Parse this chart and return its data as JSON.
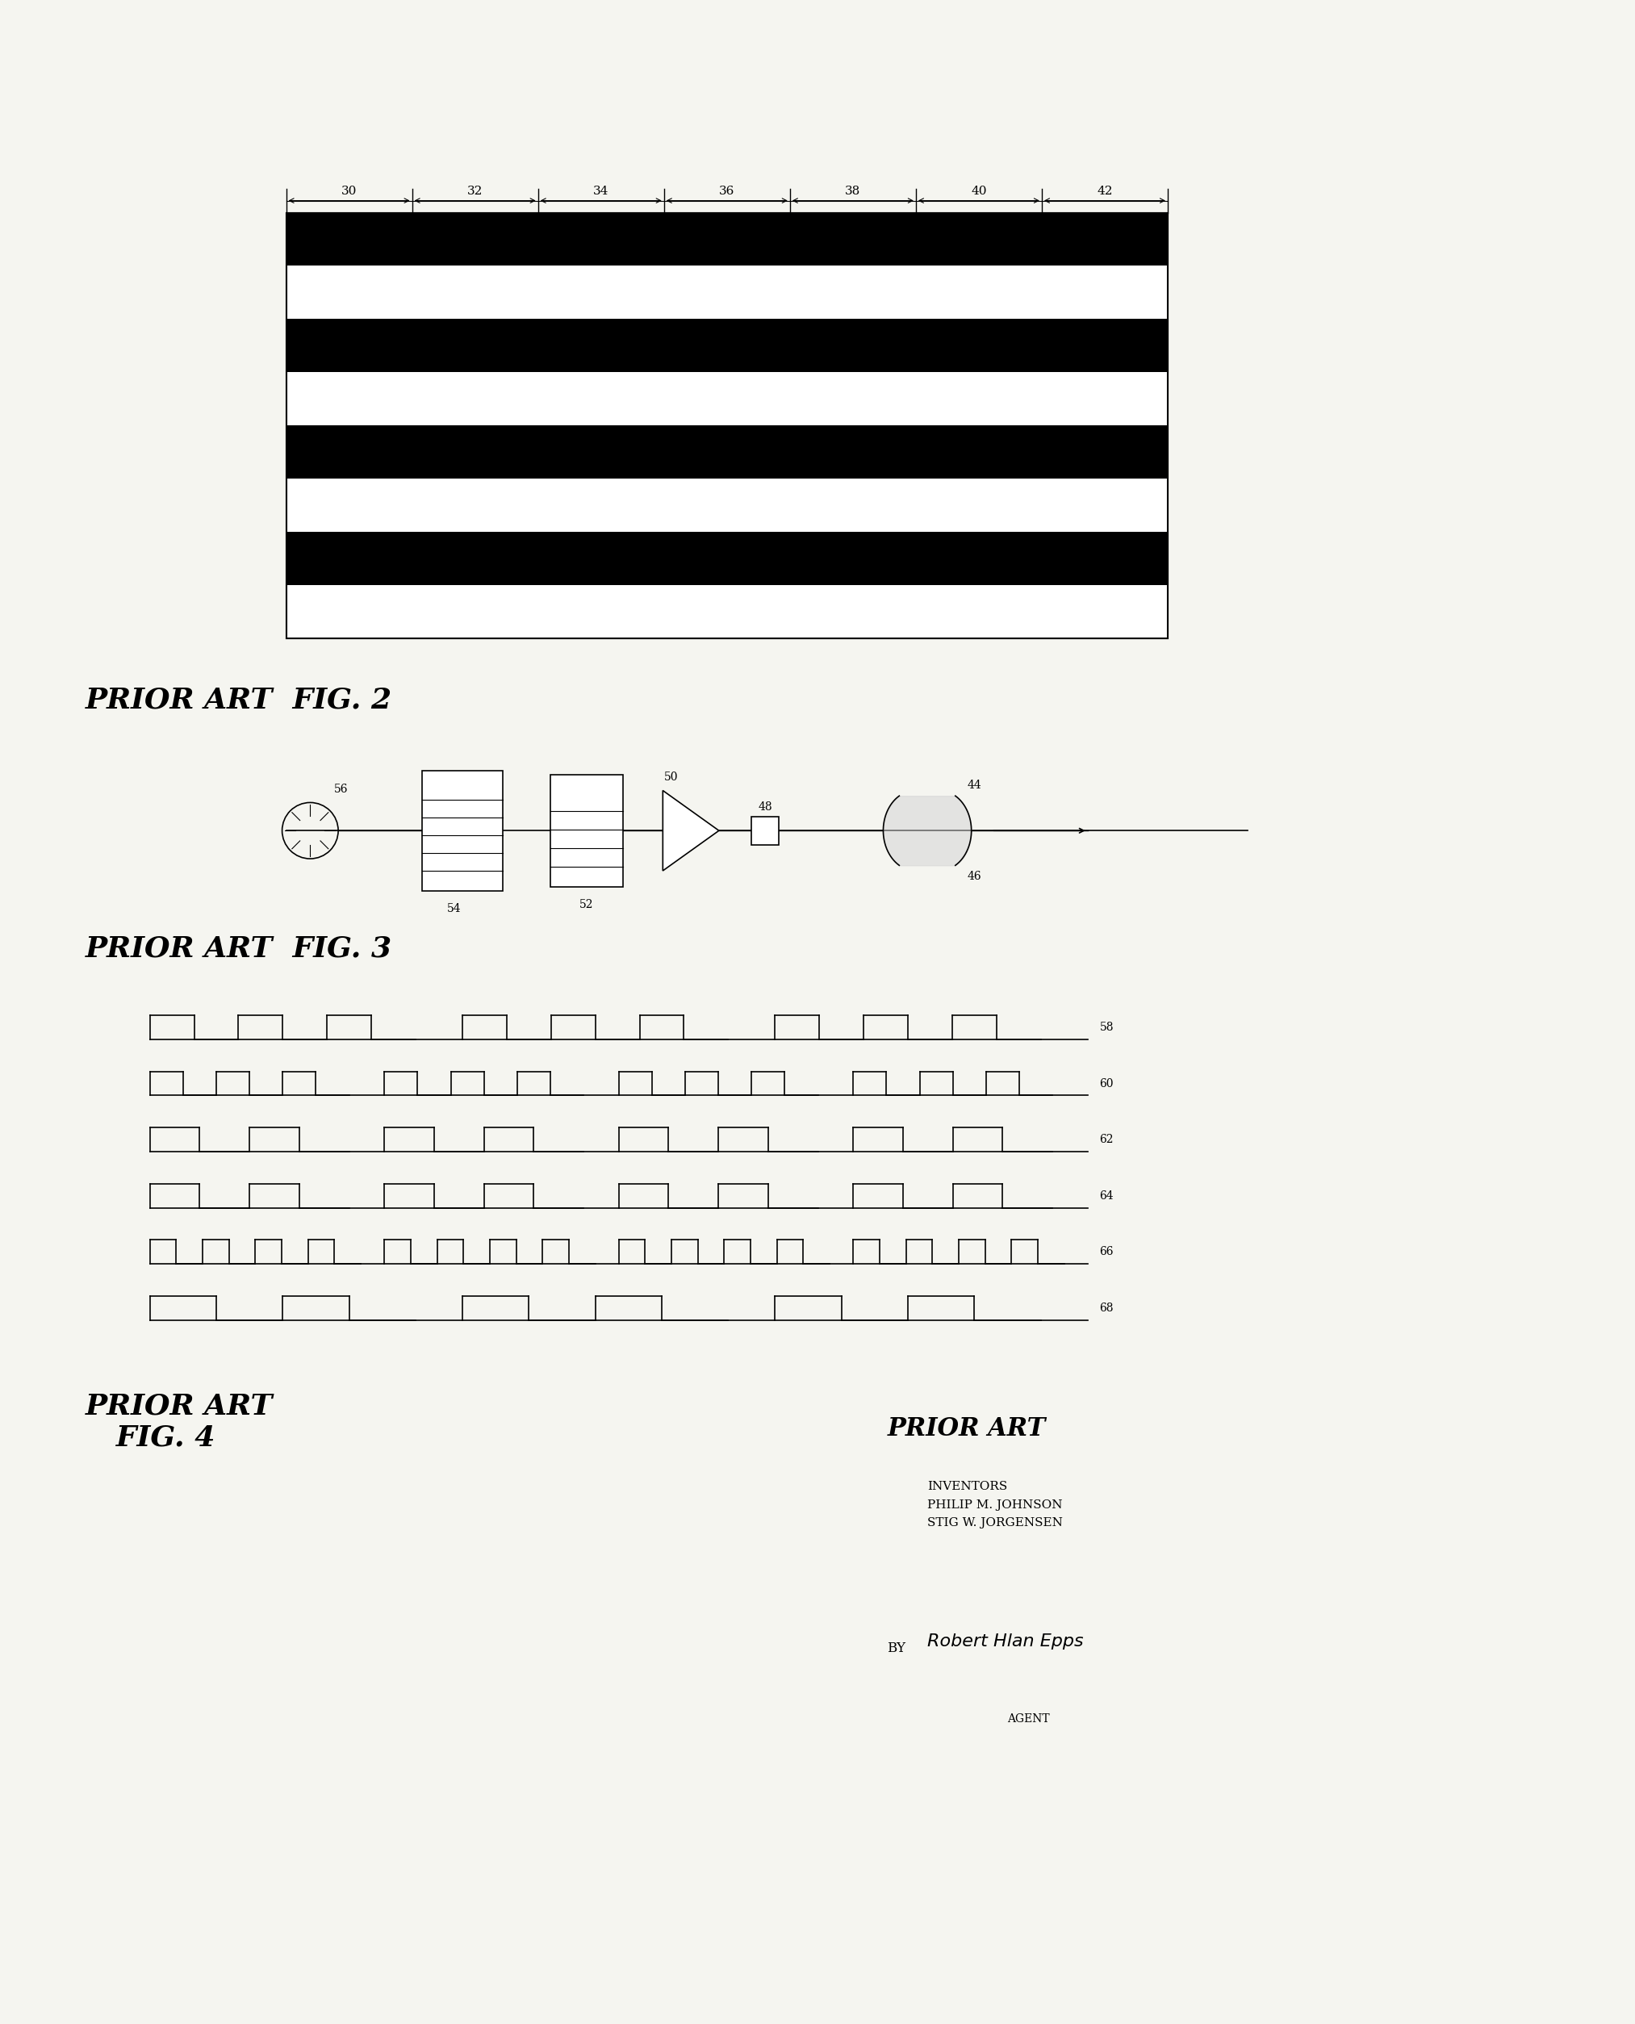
{
  "bg_color": "#f5f5f0",
  "fig2_title": "PRIOR ART  FIG. 2",
  "fig3_title": "PRIOR ART  FIG. 3",
  "fig4_title": "PRIOR ART\n   FIG. 4",
  "label_30": "30",
  "label_32": "32",
  "label_34": "34",
  "label_36": "36",
  "label_38": "38",
  "label_40": "40",
  "label_42": "42",
  "label_44": "44",
  "label_46": "46",
  "label_48": "48",
  "label_50": "50",
  "label_52": "52",
  "label_54": "54",
  "label_56": "56",
  "label_58": "58",
  "label_60": "60",
  "label_62": "62",
  "label_64": "64",
  "label_66": "66",
  "label_68": "68",
  "inventors_text": "INVENTORS\nPHILIP M. JOHNSON\nSTIG W. JORGENSEN",
  "agent_text": "AGENT",
  "by_text": "BY",
  "prior_art_right": "PRIOR ART"
}
